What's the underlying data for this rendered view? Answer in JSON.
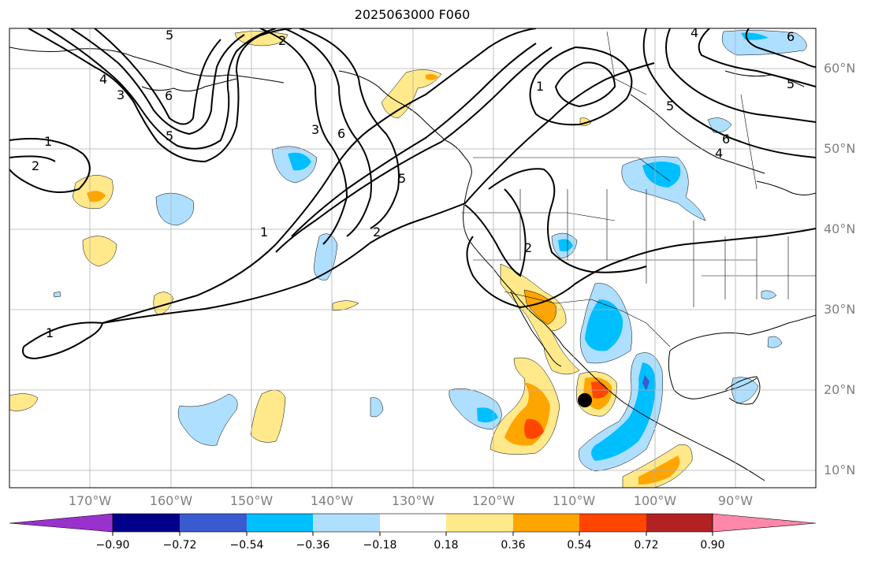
{
  "map": {
    "title": "2025063000 F060",
    "lat_labels": [
      "60°N",
      "50°N",
      "40°N",
      "30°N",
      "20°N",
      "10°N"
    ],
    "lon_labels": [
      "170°W",
      "160°W",
      "150°W",
      "140°W",
      "130°W",
      "120°W",
      "110°W",
      "100°W",
      "90°W"
    ],
    "contour_labels": [
      "1",
      "2",
      "3",
      "4",
      "5",
      "6"
    ],
    "storm_marker": "black-dot",
    "shading_colors": {
      "neg_extreme": "#9932cc",
      "neg_090": "#00008b",
      "neg_072": "#3a5bcf",
      "neg_054": "#00bfff",
      "neg_036": "#afdfff",
      "neutral": "#ffffff",
      "pos_018": "#ffe98a",
      "pos_036": "#ffa500",
      "pos_054": "#ff4500",
      "pos_072": "#b22222",
      "pos_extreme": "#ff88aa"
    }
  },
  "colorbar": {
    "labels": [
      "−0.90",
      "−0.72",
      "−0.54",
      "−0.36",
      "−0.18",
      "0.18",
      "0.36",
      "0.54",
      "0.72",
      "0.90"
    ]
  }
}
